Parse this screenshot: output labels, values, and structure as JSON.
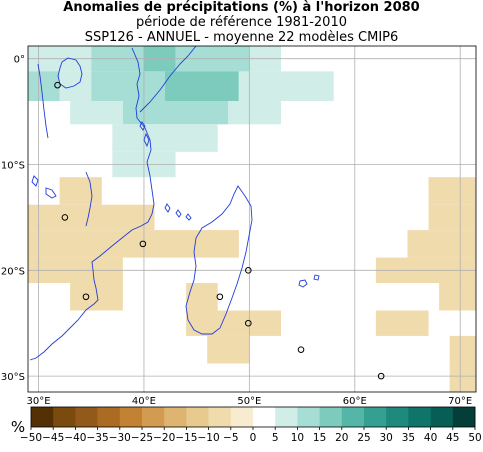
{
  "title": {
    "line1": "Anomalies de précipitations (%) à l'horizon 2080",
    "line2": "période de référence 1981-2010",
    "line3": "SSP126 - ANNUEL - moyenne 22 modèles CMIP6"
  },
  "map": {
    "lon_range": [
      29,
      71.5
    ],
    "lat_range": [
      -31.5,
      1.2
    ],
    "x_ticks": [
      {
        "lon": 30,
        "label": "30°E"
      },
      {
        "lon": 40,
        "label": "40°E"
      },
      {
        "lon": 50,
        "label": "50°E"
      },
      {
        "lon": 60,
        "label": "60°E"
      },
      {
        "lon": 70,
        "label": "70°E"
      }
    ],
    "y_ticks": [
      {
        "lat": 0,
        "label": "0°"
      },
      {
        "lat": -10,
        "label": "10°S"
      },
      {
        "lat": -20,
        "label": "20°S"
      },
      {
        "lat": -30,
        "label": "30°S"
      }
    ],
    "grid": true,
    "coastline_color": "#1f3ddb",
    "stations": [
      {
        "lon": 31.8,
        "lat": -2.5
      },
      {
        "lon": 32.5,
        "lat": -15.0
      },
      {
        "lon": 39.9,
        "lat": -17.5
      },
      {
        "lon": 34.5,
        "lat": -22.5
      },
      {
        "lon": 47.2,
        "lat": -22.5
      },
      {
        "lon": 49.9,
        "lat": -20.0
      },
      {
        "lon": 49.9,
        "lat": -25.0
      },
      {
        "lon": 54.9,
        "lat": -27.5
      },
      {
        "lon": 62.5,
        "lat": -30.0
      }
    ],
    "anomaly_cells": [
      {
        "lon0": 29,
        "lon1": 35,
        "lat0": 1.2,
        "lat1": -1.2,
        "value": 7.5
      },
      {
        "lon0": 35,
        "lon1": 40,
        "lat0": 1.2,
        "lat1": -1.2,
        "value": 12.5
      },
      {
        "lon0": 40,
        "lon1": 43,
        "lat0": 1.2,
        "lat1": -1.2,
        "value": 17.5
      },
      {
        "lon0": 43,
        "lon1": 50,
        "lat0": 1.2,
        "lat1": -1.2,
        "value": 12.5
      },
      {
        "lon0": 50,
        "lon1": 53,
        "lat0": 1.2,
        "lat1": -1.2,
        "value": 7.5
      },
      {
        "lon0": 29,
        "lon1": 32,
        "lat0": -1.2,
        "lat1": -4.0,
        "value": 12.5
      },
      {
        "lon0": 32,
        "lon1": 35,
        "lat0": -1.2,
        "lat1": -4.0,
        "value": 7.5
      },
      {
        "lon0": 35,
        "lon1": 42,
        "lat0": -1.2,
        "lat1": -4.0,
        "value": 12.5
      },
      {
        "lon0": 42,
        "lon1": 49,
        "lat0": -1.2,
        "lat1": -4.0,
        "value": 17.5
      },
      {
        "lon0": 49,
        "lon1": 58,
        "lat0": -1.2,
        "lat1": -4.0,
        "value": 7.5
      },
      {
        "lon0": 33,
        "lon1": 38,
        "lat0": -4.0,
        "lat1": -6.2,
        "value": 7.5
      },
      {
        "lon0": 38,
        "lon1": 48,
        "lat0": -4.0,
        "lat1": -6.2,
        "value": 12.5
      },
      {
        "lon0": 48,
        "lon1": 53,
        "lat0": -4.0,
        "lat1": -6.2,
        "value": 7.5
      },
      {
        "lon0": 37,
        "lon1": 47,
        "lat0": -6.2,
        "lat1": -8.8,
        "value": 7.5
      },
      {
        "lon0": 37,
        "lon1": 41,
        "lat0": -8.8,
        "lat1": -11.2,
        "value": 7.5
      },
      {
        "lon0": 41,
        "lon1": 43,
        "lat0": -8.8,
        "lat1": -11.2,
        "value": 7.5
      },
      {
        "lon0": 32,
        "lon1": 36,
        "lat0": -11.2,
        "lat1": -13.8,
        "value": -7.5
      },
      {
        "lon0": 29,
        "lon1": 41,
        "lat0": -13.8,
        "lat1": -16.2,
        "value": -7.5
      },
      {
        "lon0": 29,
        "lon1": 49,
        "lat0": -16.2,
        "lat1": -18.8,
        "value": -7.5
      },
      {
        "lon0": 29,
        "lon1": 38,
        "lat0": -18.8,
        "lat1": -21.2,
        "value": -7.5
      },
      {
        "lon0": 33,
        "lon1": 38,
        "lat0": -21.2,
        "lat1": -23.8,
        "value": -7.5
      },
      {
        "lon0": 44,
        "lon1": 47,
        "lat0": -21.2,
        "lat1": -23.8,
        "value": -7.5
      },
      {
        "lon0": 44,
        "lon1": 53,
        "lat0": -23.8,
        "lat1": -26.2,
        "value": -7.5
      },
      {
        "lon0": 46,
        "lon1": 50,
        "lat0": -26.2,
        "lat1": -28.8,
        "value": -7.5
      },
      {
        "lon0": 67,
        "lon1": 71.5,
        "lat0": -11.2,
        "lat1": -13.8,
        "value": -7.5
      },
      {
        "lon0": 67,
        "lon1": 71.5,
        "lat0": -13.8,
        "lat1": -16.2,
        "value": -7.5
      },
      {
        "lon0": 65,
        "lon1": 71.5,
        "lat0": -16.2,
        "lat1": -18.8,
        "value": -7.5
      },
      {
        "lon0": 62,
        "lon1": 71.5,
        "lat0": -18.8,
        "lat1": -21.2,
        "value": -7.5
      },
      {
        "lon0": 68,
        "lon1": 71.5,
        "lat0": -21.2,
        "lat1": -23.8,
        "value": -7.5
      },
      {
        "lon0": 62,
        "lon1": 67,
        "lat0": -23.8,
        "lat1": -26.2,
        "value": -7.5
      },
      {
        "lon0": 69,
        "lon1": 71.5,
        "lat0": -26.2,
        "lat1": -28.8,
        "value": -7.5
      },
      {
        "lon0": 69,
        "lon1": 71.5,
        "lat0": -28.8,
        "lat1": -31.5,
        "value": -7.5
      }
    ]
  },
  "colorbar": {
    "unit_label": "%",
    "bounds": [
      -50,
      -45,
      -40,
      -35,
      -30,
      -25,
      -20,
      -15,
      -10,
      -5,
      0,
      5,
      10,
      15,
      20,
      25,
      30,
      35,
      40,
      45,
      50
    ],
    "tick_labels": [
      "−50",
      "−45",
      "−40",
      "−35",
      "−30",
      "−25",
      "−20",
      "−15",
      "−10",
      "−5",
      "0",
      "5",
      "10",
      "15",
      "20",
      "25",
      "30",
      "35",
      "40",
      "45",
      "50"
    ],
    "colors": [
      "#543005",
      "#7a4a0e",
      "#93591b",
      "#ab6b22",
      "#c28133",
      "#d29b51",
      "#deb471",
      "#e8c98e",
      "#f0dbad",
      "#f7ecd0",
      "#ffffff",
      "#d0ede8",
      "#a6ddd4",
      "#7dcbbd",
      "#55b5a6",
      "#35a092",
      "#1e8a7d",
      "#0f7469",
      "#075e55",
      "#033f38"
    ]
  }
}
